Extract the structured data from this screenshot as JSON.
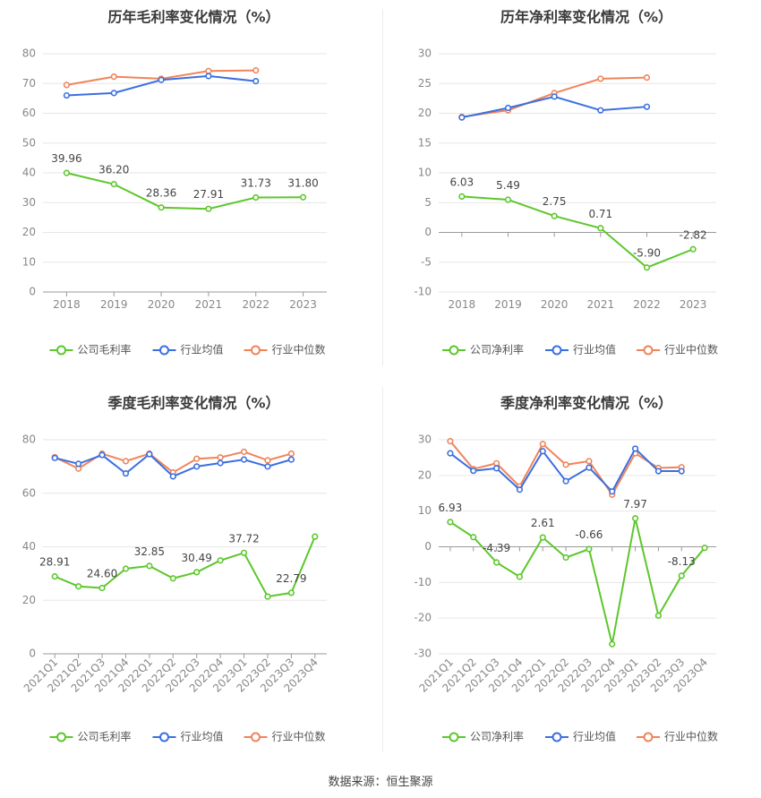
{
  "source_text": "数据来源：恒生聚源",
  "colors": {
    "company": "#5cc72b",
    "industry_avg": "#3b6fe0",
    "industry_median": "#f0845a",
    "grid": "#e6e6e6",
    "axis": "#666666",
    "title": "#3a3a3a",
    "tick": "#888888"
  },
  "chart_data": [
    {
      "type": "line",
      "title": "历年毛利率变化情况（%）",
      "categories": [
        "2018",
        "2019",
        "2020",
        "2021",
        "2022",
        "2023"
      ],
      "ylim": [
        0,
        80
      ],
      "yticks": [
        0,
        10,
        20,
        30,
        40,
        50,
        60,
        70,
        80
      ],
      "grid": true,
      "legend_position": "bottom",
      "series": [
        {
          "name": "公司毛利率",
          "color_key": "company",
          "values": [
            39.96,
            36.2,
            28.36,
            27.91,
            31.73,
            31.8
          ],
          "labels": [
            "39.96",
            "36.20",
            "28.36",
            "27.91",
            "31.73",
            "31.80"
          ]
        },
        {
          "name": "行业均值",
          "color_key": "industry_avg",
          "values": [
            66.0,
            66.8,
            71.2,
            72.5,
            70.8,
            null
          ]
        },
        {
          "name": "行业中位数",
          "color_key": "industry_median",
          "values": [
            69.5,
            72.3,
            71.6,
            74.2,
            74.4,
            null
          ]
        }
      ]
    },
    {
      "type": "line",
      "title": "历年净利率变化情况（%）",
      "categories": [
        "2018",
        "2019",
        "2020",
        "2021",
        "2022",
        "2023"
      ],
      "ylim": [
        -10,
        30
      ],
      "yticks": [
        -10,
        -5,
        0,
        5,
        10,
        15,
        20,
        25,
        30
      ],
      "grid": true,
      "legend_position": "bottom",
      "series": [
        {
          "name": "公司净利率",
          "color_key": "company",
          "values": [
            6.03,
            5.49,
            2.75,
            0.71,
            -5.9,
            -2.82
          ],
          "labels": [
            "6.03",
            "5.49",
            "2.75",
            "0.71",
            "-5.90",
            "-2.82"
          ]
        },
        {
          "name": "行业均值",
          "color_key": "industry_avg",
          "values": [
            19.3,
            20.9,
            22.8,
            20.5,
            21.1,
            null
          ]
        },
        {
          "name": "行业中位数",
          "color_key": "industry_median",
          "values": [
            19.4,
            20.5,
            23.4,
            25.8,
            26.0,
            null
          ]
        }
      ]
    },
    {
      "type": "line",
      "title": "季度毛利率变化情况（%）",
      "categories": [
        "2021Q1",
        "2021Q2",
        "2021Q3",
        "2021Q4",
        "2022Q1",
        "2022Q2",
        "2022Q3",
        "2022Q4",
        "2023Q1",
        "2023Q2",
        "2023Q3",
        "2023Q4"
      ],
      "ylim": [
        0,
        80
      ],
      "yticks": [
        0,
        20,
        40,
        60,
        80
      ],
      "grid": true,
      "legend_position": "bottom",
      "series": [
        {
          "name": "公司毛利率",
          "color_key": "company",
          "values": [
            28.91,
            25.2,
            24.6,
            31.8,
            32.85,
            28.2,
            30.49,
            34.9,
            37.72,
            21.4,
            22.79,
            43.8
          ],
          "labels": [
            "28.91",
            "",
            "24.60",
            "",
            "32.85",
            "",
            "30.49",
            "",
            "37.72",
            "",
            "22.79",
            ""
          ]
        },
        {
          "name": "行业均值",
          "color_key": "industry_avg",
          "values": [
            73.2,
            71.0,
            74.3,
            67.4,
            74.6,
            66.3,
            70.0,
            71.3,
            72.6,
            70.0,
            72.6,
            null
          ]
        },
        {
          "name": "行业中位数",
          "color_key": "industry_median",
          "values": [
            73.5,
            69.2,
            74.8,
            72.0,
            74.8,
            67.8,
            72.9,
            73.4,
            75.5,
            72.3,
            74.8,
            null
          ]
        }
      ]
    },
    {
      "type": "line",
      "title": "季度净利率变化情况（%）",
      "categories": [
        "2021Q1",
        "2021Q2",
        "2021Q3",
        "2021Q4",
        "2022Q1",
        "2022Q2",
        "2022Q3",
        "2022Q4",
        "2023Q1",
        "2023Q2",
        "2023Q3",
        "2023Q4"
      ],
      "ylim": [
        -30,
        30
      ],
      "yticks": [
        -30,
        -20,
        -10,
        0,
        10,
        20,
        30
      ],
      "grid": true,
      "legend_position": "bottom",
      "series": [
        {
          "name": "公司净利率",
          "color_key": "company",
          "values": [
            6.93,
            2.7,
            -4.39,
            -8.4,
            2.61,
            -3.0,
            -0.66,
            -27.3,
            7.97,
            -19.3,
            -8.13,
            -0.3
          ],
          "labels": [
            "6.93",
            "",
            "-4.39",
            "",
            "2.61",
            "",
            "-0.66",
            "",
            "7.97",
            "",
            "-8.13",
            ""
          ]
        },
        {
          "name": "行业均值",
          "color_key": "industry_avg",
          "values": [
            26.2,
            21.3,
            22.0,
            16.0,
            26.8,
            18.4,
            22.2,
            15.5,
            27.5,
            21.2,
            21.2,
            null
          ]
        },
        {
          "name": "行业中位数",
          "color_key": "industry_median",
          "values": [
            29.6,
            21.8,
            23.4,
            16.9,
            28.8,
            23.0,
            24.0,
            14.6,
            26.2,
            22.1,
            22.3,
            null
          ]
        }
      ]
    }
  ]
}
